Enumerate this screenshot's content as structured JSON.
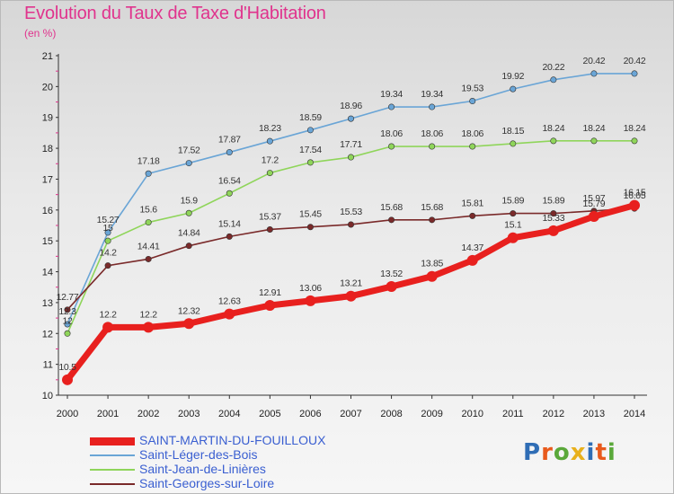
{
  "title": "Evolution du Taux de Taxe d'Habitation",
  "unit": "(en %)",
  "logo": {
    "text": "Proxiti",
    "colors": [
      "#2f6db5",
      "#e85a1c",
      "#5aa83a",
      "#e8b01c",
      "#2f6db5",
      "#e85a1c",
      "#5aa83a"
    ]
  },
  "chart_data": {
    "type": "line",
    "title": "Evolution du Taux de Taxe d'Habitation",
    "ylabel": "(en %)",
    "xlabel": "",
    "x": [
      "2000",
      "2001",
      "2002",
      "2003",
      "2004",
      "2005",
      "2006",
      "2007",
      "2008",
      "2009",
      "2010",
      "2011",
      "2012",
      "2013",
      "2014"
    ],
    "ylim": [
      10,
      21
    ],
    "yticks": [
      "10",
      "11",
      "12",
      "13",
      "14",
      "15",
      "16",
      "17",
      "18",
      "19",
      "20",
      "21"
    ],
    "grid": false,
    "legend_position": "bottom-left",
    "series": [
      {
        "name": "SAINT-MARTIN-DU-FOUILLOUX",
        "color": "#e8201e",
        "values": [
          10.5,
          12.2,
          12.2,
          12.32,
          12.63,
          12.91,
          13.06,
          13.21,
          13.52,
          13.85,
          14.37,
          15.1,
          15.33,
          15.79,
          16.15
        ],
        "labels": [
          "10.5",
          "12.2",
          "12.2",
          "12.32",
          "12.63",
          "12.91",
          "13.06",
          "13.21",
          "13.52",
          "13.85",
          "14.37",
          "15.1",
          "15.33",
          "15.79",
          "16.15"
        ]
      },
      {
        "name": "Saint-Léger-des-Bois",
        "color": "#6aa5d6",
        "values": [
          12.3,
          15.27,
          17.18,
          17.52,
          17.87,
          18.23,
          18.59,
          18.96,
          19.34,
          19.34,
          19.53,
          19.92,
          20.22,
          20.42,
          20.42
        ],
        "labels": [
          "12.3",
          "15.27",
          "17.18",
          "17.52",
          "17.87",
          "18.23",
          "18.59",
          "18.96",
          "19.34",
          "19.34",
          "19.53",
          "19.92",
          "20.22",
          "20.42",
          "20.42"
        ]
      },
      {
        "name": "Saint-Jean-de-Linières",
        "color": "#8fd55a",
        "values": [
          12,
          15,
          15.6,
          15.9,
          16.54,
          17.2,
          17.54,
          17.71,
          18.06,
          18.06,
          18.06,
          18.15,
          18.24,
          18.24,
          18.24
        ],
        "labels": [
          "12",
          "15",
          "15.6",
          "15.9",
          "16.54",
          "17.2",
          "17.54",
          "17.71",
          "18.06",
          "18.06",
          "18.06",
          "18.15",
          "18.24",
          "18.24",
          "18.24"
        ]
      },
      {
        "name": "Saint-Georges-sur-Loire",
        "color": "#7a2a2a",
        "values": [
          12.77,
          14.2,
          14.41,
          14.84,
          15.14,
          15.37,
          15.45,
          15.53,
          15.68,
          15.68,
          15.81,
          15.89,
          15.89,
          15.97,
          16.05
        ],
        "labels": [
          "12.77",
          "14.2",
          "14.41",
          "14.84",
          "15.14",
          "15.37",
          "15.45",
          "15.53",
          "15.68",
          "15.68",
          "15.81",
          "15.89",
          "15.89",
          "15.97",
          "16.05"
        ]
      }
    ]
  }
}
